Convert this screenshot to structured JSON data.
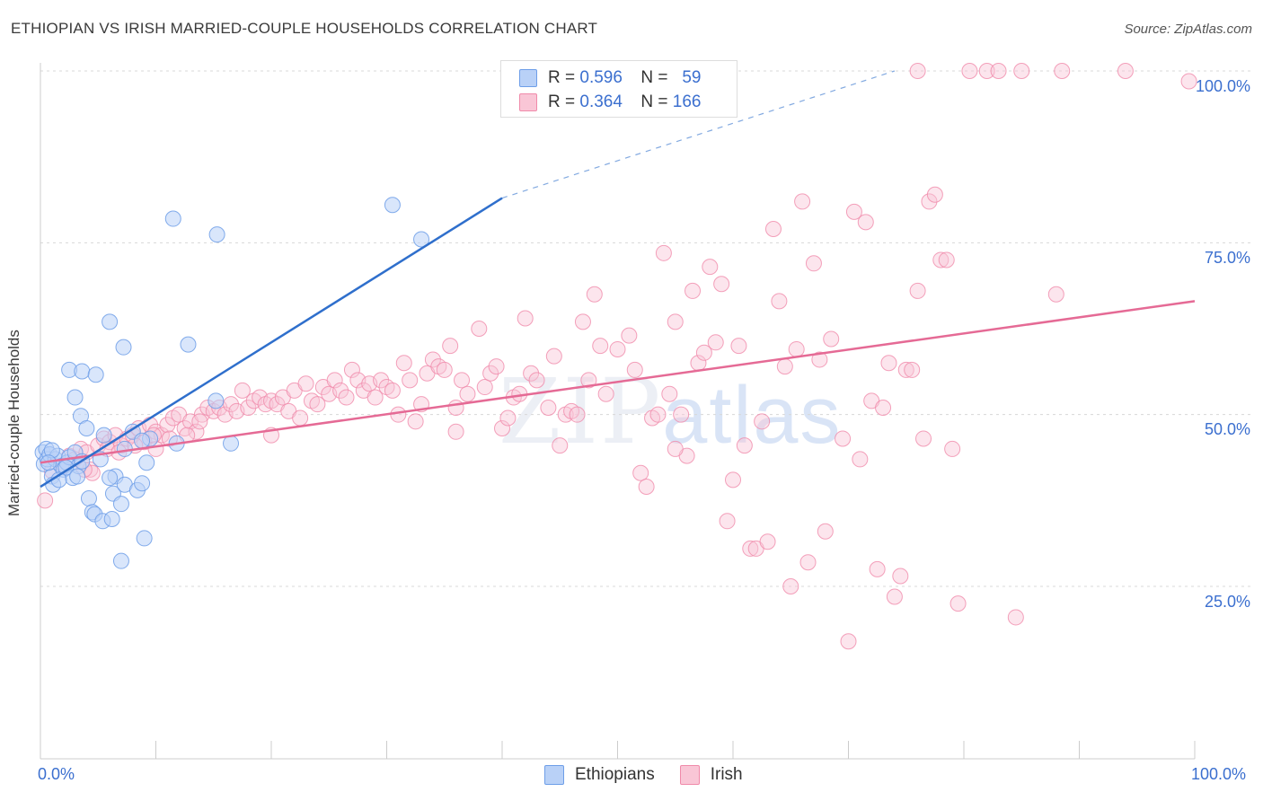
{
  "title": "ETHIOPIAN VS IRISH MARRIED-COUPLE HOUSEHOLDS CORRELATION CHART",
  "source": "Source: ZipAtlas.com",
  "watermark": {
    "part1": "ZIP",
    "part2": "atlas"
  },
  "legend": {
    "rows": [
      {
        "r_label": "R =",
        "r_value": "0.596",
        "n_label": "N =",
        "n_value": "59"
      },
      {
        "r_label": "R =",
        "r_value": "0.364",
        "n_label": "N =",
        "n_value": "166"
      }
    ]
  },
  "bottom_legend": [
    "Ethiopians",
    "Irish"
  ],
  "x_ticks": {
    "left": "0.0%",
    "right": "100.0%"
  },
  "y_ticks": [
    "100.0%",
    "75.0%",
    "50.0%",
    "25.0%"
  ],
  "colors": {
    "blue": "#6d9ee8",
    "blue_fill": "#b9d1f7",
    "pink": "#f08aaa",
    "pink_fill": "#f9c6d6",
    "blue_line": "#2f6fcc",
    "pink_line": "#e56a95",
    "tick_text": "#3b6fcf"
  },
  "chart_data": {
    "type": "scatter",
    "title": "ETHIOPIAN VS IRISH MARRIED-COUPLE HOUSEHOLDS CORRELATION CHART",
    "xlabel": "",
    "ylabel": "Married-couple Households",
    "xlim": [
      0,
      100
    ],
    "ylim": [
      0,
      105
    ],
    "grid": true,
    "legend_position": "top-center",
    "series": [
      {
        "name": "Ethiopians",
        "trend": {
          "x": [
            0,
            40
          ],
          "y": [
            39.5,
            81.5
          ],
          "dashed_to": [
            74,
            100
          ]
        },
        "points": [
          [
            0.2,
            44.5
          ],
          [
            0.3,
            42.8
          ],
          [
            0.5,
            45.0
          ],
          [
            0.6,
            43.5
          ],
          [
            0.8,
            44.2
          ],
          [
            1.0,
            41.0
          ],
          [
            1.1,
            39.8
          ],
          [
            1.3,
            43.5
          ],
          [
            1.5,
            44.0
          ],
          [
            1.8,
            42.5
          ],
          [
            2.0,
            42.0
          ],
          [
            2.3,
            43.0
          ],
          [
            2.5,
            43.8
          ],
          [
            2.8,
            40.8
          ],
          [
            3.0,
            44.5
          ],
          [
            3.3,
            42.5
          ],
          [
            3.6,
            43.2
          ],
          [
            2.5,
            56.5
          ],
          [
            3.6,
            56.3
          ],
          [
            3.5,
            49.8
          ],
          [
            3.0,
            52.5
          ],
          [
            4.0,
            48.0
          ],
          [
            4.8,
            55.8
          ],
          [
            5.5,
            47.0
          ],
          [
            5.2,
            43.5
          ],
          [
            6.0,
            63.5
          ],
          [
            6.5,
            41.0
          ],
          [
            4.2,
            37.8
          ],
          [
            4.5,
            35.8
          ],
          [
            4.7,
            35.5
          ],
          [
            5.4,
            34.5
          ],
          [
            6.2,
            34.8
          ],
          [
            6.3,
            38.5
          ],
          [
            6.0,
            40.8
          ],
          [
            7.0,
            37.0
          ],
          [
            7.3,
            39.8
          ],
          [
            7.2,
            59.8
          ],
          [
            7.3,
            45.0
          ],
          [
            8.0,
            47.5
          ],
          [
            8.4,
            39.0
          ],
          [
            8.8,
            40.0
          ],
          [
            9.2,
            43.0
          ],
          [
            9.0,
            32.0
          ],
          [
            7.0,
            28.7
          ],
          [
            9.5,
            46.5
          ],
          [
            11.5,
            78.5
          ],
          [
            11.8,
            45.8
          ],
          [
            12.8,
            60.2
          ],
          [
            15.2,
            52.0
          ],
          [
            15.3,
            76.2
          ],
          [
            16.5,
            45.8
          ],
          [
            30.5,
            80.5
          ],
          [
            33.0,
            75.5
          ],
          [
            8.8,
            46.2
          ],
          [
            1.0,
            44.8
          ],
          [
            0.7,
            43.0
          ],
          [
            2.2,
            42.3
          ],
          [
            3.2,
            41.0
          ],
          [
            1.6,
            40.5
          ]
        ]
      },
      {
        "name": "Irish",
        "trend": {
          "x": [
            0,
            100
          ],
          "y": [
            43.0,
            66.5
          ]
        },
        "points": [
          [
            0.4,
            37.5
          ],
          [
            1.0,
            41.8
          ],
          [
            2.0,
            42.5
          ],
          [
            2.5,
            44.0
          ],
          [
            3.0,
            43.5
          ],
          [
            3.5,
            45.0
          ],
          [
            4.0,
            44.5
          ],
          [
            4.3,
            42.0
          ],
          [
            5.0,
            45.5
          ],
          [
            5.5,
            46.5
          ],
          [
            6.0,
            46.0
          ],
          [
            6.5,
            47.0
          ],
          [
            7.0,
            45.5
          ],
          [
            7.5,
            46.5
          ],
          [
            8.0,
            47.0
          ],
          [
            8.5,
            48.0
          ],
          [
            9.0,
            46.0
          ],
          [
            9.5,
            48.5
          ],
          [
            10.0,
            47.5
          ],
          [
            10.5,
            47.0
          ],
          [
            11.0,
            48.5
          ],
          [
            11.5,
            49.5
          ],
          [
            12.0,
            50.0
          ],
          [
            12.5,
            48.0
          ],
          [
            13.0,
            49.0
          ],
          [
            13.5,
            47.5
          ],
          [
            14.0,
            50.0
          ],
          [
            14.5,
            51.0
          ],
          [
            15.0,
            50.5
          ],
          [
            15.5,
            51.0
          ],
          [
            16.0,
            50.0
          ],
          [
            16.5,
            51.5
          ],
          [
            17.0,
            50.5
          ],
          [
            17.5,
            53.5
          ],
          [
            18.0,
            51.0
          ],
          [
            18.5,
            52.0
          ],
          [
            19.0,
            52.5
          ],
          [
            19.5,
            51.5
          ],
          [
            20.0,
            52.0
          ],
          [
            20.5,
            51.5
          ],
          [
            21.0,
            52.5
          ],
          [
            21.5,
            50.5
          ],
          [
            22.0,
            53.5
          ],
          [
            22.5,
            49.5
          ],
          [
            23.0,
            54.5
          ],
          [
            23.5,
            52.0
          ],
          [
            24.0,
            51.5
          ],
          [
            24.5,
            54.0
          ],
          [
            25.0,
            53.0
          ],
          [
            25.5,
            55.0
          ],
          [
            26.0,
            53.5
          ],
          [
            26.5,
            52.5
          ],
          [
            27.0,
            56.5
          ],
          [
            27.5,
            55.0
          ],
          [
            28.0,
            53.5
          ],
          [
            28.5,
            54.5
          ],
          [
            29.0,
            52.5
          ],
          [
            29.5,
            55.0
          ],
          [
            30.0,
            54.0
          ],
          [
            30.5,
            53.5
          ],
          [
            31.0,
            50.0
          ],
          [
            31.5,
            57.5
          ],
          [
            32.0,
            55.0
          ],
          [
            32.5,
            49.0
          ],
          [
            33.0,
            51.5
          ],
          [
            33.5,
            56.0
          ],
          [
            34.0,
            58.0
          ],
          [
            34.5,
            57.0
          ],
          [
            35.0,
            56.5
          ],
          [
            35.5,
            60.0
          ],
          [
            36.0,
            51.0
          ],
          [
            36.5,
            55.0
          ],
          [
            37.0,
            53.0
          ],
          [
            38.0,
            62.5
          ],
          [
            38.5,
            54.0
          ],
          [
            39.0,
            56.0
          ],
          [
            39.5,
            57.0
          ],
          [
            40.0,
            48.0
          ],
          [
            40.5,
            49.5
          ],
          [
            41.0,
            52.5
          ],
          [
            41.5,
            53.0
          ],
          [
            42.0,
            64.0
          ],
          [
            42.5,
            56.0
          ],
          [
            43.0,
            55.0
          ],
          [
            44.0,
            51.0
          ],
          [
            44.5,
            58.5
          ],
          [
            45.0,
            45.5
          ],
          [
            45.5,
            50.0
          ],
          [
            46.0,
            50.5
          ],
          [
            46.5,
            50.0
          ],
          [
            47.0,
            63.5
          ],
          [
            47.5,
            55.0
          ],
          [
            48.0,
            67.5
          ],
          [
            48.5,
            60.0
          ],
          [
            49.0,
            53.0
          ],
          [
            50.0,
            59.5
          ],
          [
            51.0,
            61.5
          ],
          [
            51.5,
            56.5
          ],
          [
            52.0,
            41.5
          ],
          [
            52.5,
            39.5
          ],
          [
            53.0,
            49.5
          ],
          [
            53.5,
            50.0
          ],
          [
            54.0,
            73.5
          ],
          [
            54.5,
            53.0
          ],
          [
            55.0,
            63.5
          ],
          [
            55.5,
            50.0
          ],
          [
            56.0,
            44.0
          ],
          [
            56.5,
            68.0
          ],
          [
            57.0,
            57.5
          ],
          [
            57.5,
            59.0
          ],
          [
            58.0,
            71.5
          ],
          [
            58.5,
            60.5
          ],
          [
            59.0,
            69.0
          ],
          [
            59.5,
            34.5
          ],
          [
            60.0,
            40.5
          ],
          [
            60.5,
            60.0
          ],
          [
            61.0,
            45.5
          ],
          [
            61.5,
            30.5
          ],
          [
            62.0,
            30.5
          ],
          [
            62.5,
            49.0
          ],
          [
            63.0,
            31.5
          ],
          [
            63.5,
            77.0
          ],
          [
            64.0,
            66.5
          ],
          [
            64.5,
            57.0
          ],
          [
            65.0,
            25.0
          ],
          [
            65.5,
            59.5
          ],
          [
            66.0,
            81.0
          ],
          [
            66.5,
            28.5
          ],
          [
            67.0,
            72.0
          ],
          [
            67.5,
            58.0
          ],
          [
            68.0,
            33.0
          ],
          [
            68.5,
            61.0
          ],
          [
            69.5,
            46.5
          ],
          [
            70.0,
            17.0
          ],
          [
            70.5,
            79.5
          ],
          [
            71.0,
            43.5
          ],
          [
            71.5,
            78.0
          ],
          [
            72.0,
            52.0
          ],
          [
            72.5,
            27.5
          ],
          [
            73.0,
            51.0
          ],
          [
            73.5,
            57.5
          ],
          [
            74.0,
            23.5
          ],
          [
            74.5,
            26.5
          ],
          [
            75.0,
            56.5
          ],
          [
            75.5,
            56.5
          ],
          [
            76.0,
            68.0
          ],
          [
            76.5,
            46.5
          ],
          [
            77.0,
            81.0
          ],
          [
            77.5,
            82.0
          ],
          [
            78.0,
            72.5
          ],
          [
            78.5,
            72.5
          ],
          [
            79.0,
            45.0
          ],
          [
            79.5,
            22.5
          ],
          [
            80.5,
            100.0
          ],
          [
            82.0,
            100.0
          ],
          [
            83.0,
            100.0
          ],
          [
            85.0,
            100.0
          ],
          [
            88.0,
            67.5
          ],
          [
            88.5,
            100.0
          ],
          [
            76.0,
            100.0
          ],
          [
            94.0,
            100.0
          ],
          [
            99.5,
            98.5
          ],
          [
            84.5,
            20.5
          ],
          [
            55.0,
            45.0
          ],
          [
            36.0,
            47.5
          ],
          [
            20.0,
            47.0
          ],
          [
            10.0,
            45.0
          ],
          [
            4.5,
            41.5
          ],
          [
            3.8,
            42.0
          ],
          [
            5.8,
            45.0
          ],
          [
            6.8,
            44.5
          ],
          [
            8.2,
            45.5
          ],
          [
            9.8,
            47.0
          ],
          [
            11.2,
            46.5
          ],
          [
            12.7,
            47.0
          ],
          [
            13.8,
            49.0
          ]
        ]
      }
    ],
    "x_tick_labels": [
      "0.0%",
      "100.0%"
    ],
    "y_tick_labels": [
      "25.0%",
      "50.0%",
      "75.0%",
      "100.0%"
    ]
  }
}
